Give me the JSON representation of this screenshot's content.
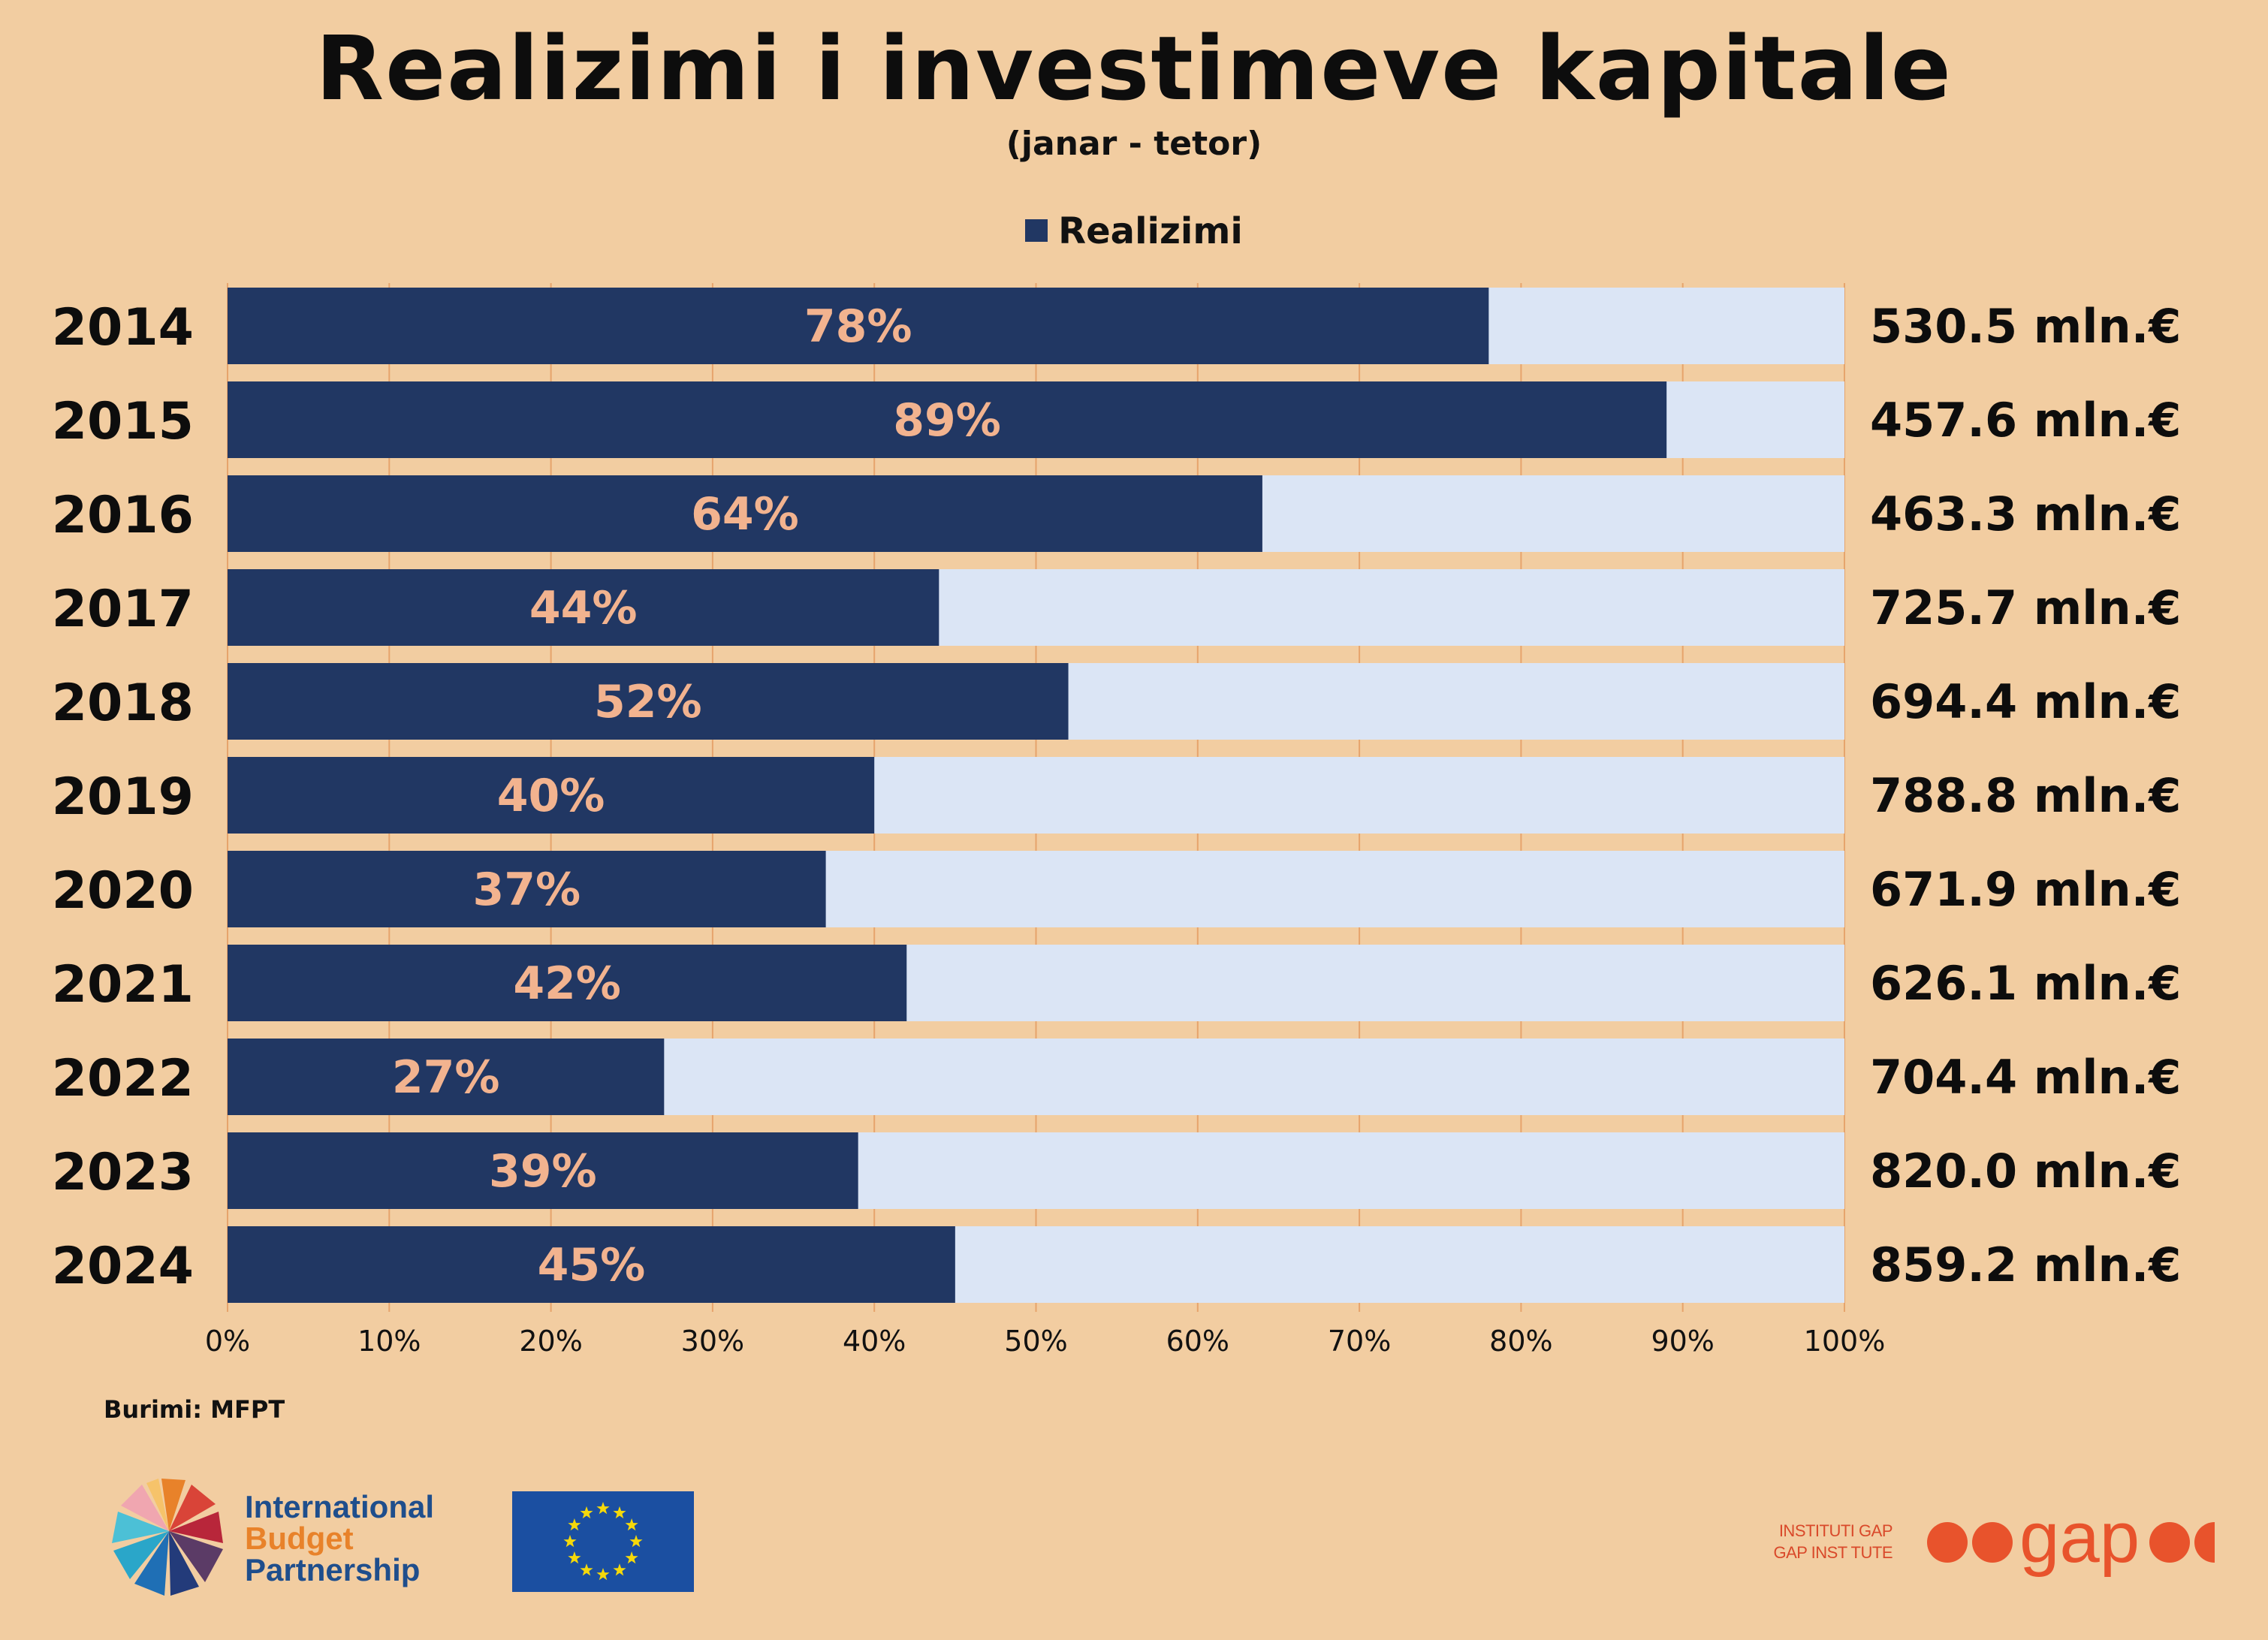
{
  "header": {
    "title": "Realizimi i investimeve kapitale",
    "subtitle": "(janar - tetor)"
  },
  "legend": {
    "label": "Realizimi"
  },
  "footer": {
    "source": "Burimi: MFPT",
    "ibp_line1": "International",
    "ibp_line2": "Budget",
    "ibp_line3": "Partnership",
    "gap_line1": "INSTITUTI GAP",
    "gap_line2": "GAP INST TUTE",
    "gap_wordmark": "gap"
  },
  "colors": {
    "background": "#f2cda1",
    "bar_realized": "#213763",
    "bar_remaining": "#dbe5f5",
    "bar_label": "#f2b38f",
    "gridline": "#e6a46c",
    "gap_brand": "#e8532c"
  },
  "chart_data": {
    "type": "bar",
    "orientation": "horizontal",
    "stacked_to_100": true,
    "categories": [
      "2014",
      "2015",
      "2016",
      "2017",
      "2018",
      "2019",
      "2020",
      "2021",
      "2022",
      "2023",
      "2024"
    ],
    "series": [
      {
        "name": "Realizimi",
        "values": [
          78,
          89,
          64,
          44,
          52,
          40,
          37,
          42,
          27,
          39,
          45
        ]
      }
    ],
    "value_labels": [
      "78%",
      "89%",
      "64%",
      "44%",
      "52%",
      "40%",
      "37%",
      "42%",
      "27%",
      "39%",
      "45%"
    ],
    "planned_amounts": [
      "530.5 mln.€",
      "457.6 mln.€",
      "463.3 mln.€",
      "725.7 mln.€",
      "694.4 mln.€",
      "788.8 mln.€",
      "671.9 mln.€",
      "626.1 mln.€",
      "704.4 mln.€",
      "820.0 mln.€",
      "859.2 mln.€"
    ],
    "xlim": [
      0,
      100
    ],
    "xticks": [
      "0%",
      "10%",
      "20%",
      "30%",
      "40%",
      "50%",
      "60%",
      "70%",
      "80%",
      "90%",
      "100%"
    ],
    "grid": true,
    "legend_position": "top"
  }
}
